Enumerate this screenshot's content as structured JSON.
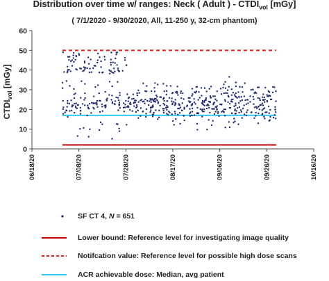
{
  "chart_data": {
    "type": "scatter",
    "title": "Distribution over time w/ ranges: Neck ( Adult ) - CTDI",
    "title_sub": "vol",
    "title_unit": " [mGy]",
    "subtitle": "( 7/1/2020 - 9/30/2020, All, 11-250 y, 32-cm phantom)",
    "ylabel": "CTDI",
    "ylabel_sub": "vol",
    "ylabel_unit": " [mGy]",
    "ylim": [
      0,
      60
    ],
    "yticks": [
      "0",
      "10",
      "20",
      "30",
      "40",
      "50",
      "60"
    ],
    "xlim": [
      "2020-06-18",
      "2020-10-16"
    ],
    "xticks": [
      "06/18/20",
      "07/08/20",
      "07/28/20",
      "08/17/20",
      "09/06/20",
      "09/26/20",
      "10/16/20"
    ],
    "grid": false,
    "legend_position": "bottom",
    "series": [
      {
        "name": "SF CT 4, N = 651",
        "type": "scatter",
        "color": "#1f2a6b",
        "x_range": [
          "2020-07-01",
          "2020-09-30"
        ],
        "y_range": [
          2,
          50
        ],
        "count": 651
      },
      {
        "name": "Lower bound: Reference level for investigating image quality",
        "type": "line",
        "color": "#c00000",
        "x": [
          "2020-07-01",
          "2020-09-30"
        ],
        "y": [
          2,
          2
        ]
      },
      {
        "name": "Notifcation value: Reference level for possible high dose scans",
        "type": "line",
        "style": "dashed",
        "color": "#e02020",
        "x": [
          "2020-07-01",
          "2020-09-30"
        ],
        "y": [
          50,
          50
        ]
      },
      {
        "name": "ACR achievable dose: Median, avg patient",
        "type": "line",
        "color": "#33ccee",
        "x": [
          "2020-07-01",
          "2020-09-30"
        ],
        "y": [
          17,
          17
        ]
      }
    ],
    "legend": {
      "scatter_label": "SF CT 4, ",
      "scatter_n_label": "N",
      "scatter_n_value": " = 651",
      "lower_label": "Lower bound: Reference level for investigating image quality",
      "notif_label": "Notifcation value: Reference level for possible high dose scans",
      "acr_label": "ACR achievable dose: Median, avg patient"
    }
  }
}
